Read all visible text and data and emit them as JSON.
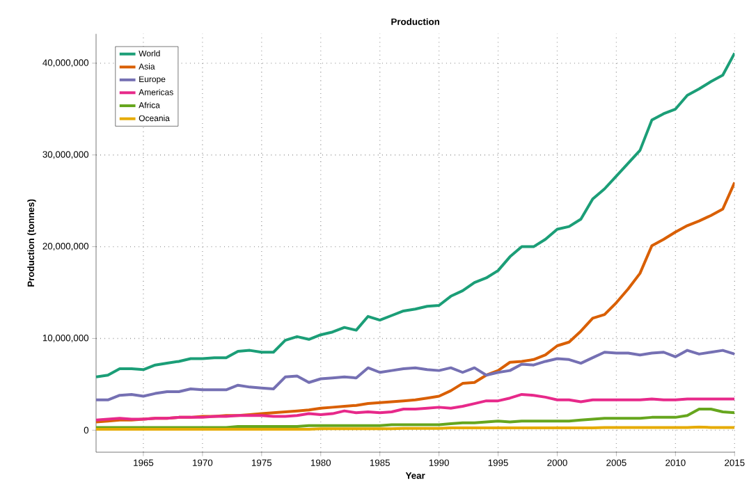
{
  "chart_data": {
    "type": "line",
    "title": "Production",
    "xlabel": "Year",
    "ylabel": "Production (tonnes)",
    "x": [
      1961,
      1962,
      1963,
      1964,
      1965,
      1966,
      1967,
      1968,
      1969,
      1970,
      1971,
      1972,
      1973,
      1974,
      1975,
      1976,
      1977,
      1978,
      1979,
      1980,
      1981,
      1982,
      1983,
      1984,
      1985,
      1986,
      1987,
      1988,
      1989,
      1990,
      1991,
      1992,
      1993,
      1994,
      1995,
      1996,
      1997,
      1998,
      1999,
      2000,
      2001,
      2002,
      2003,
      2004,
      2005,
      2006,
      2007,
      2008,
      2009,
      2010,
      2011,
      2012,
      2013,
      2014,
      2015
    ],
    "series": [
      {
        "name": "World",
        "color": "#1b9e77",
        "values": [
          5800000,
          6000000,
          6700000,
          6700000,
          6600000,
          7100000,
          7300000,
          7500000,
          7800000,
          7800000,
          7900000,
          7900000,
          8600000,
          8700000,
          8500000,
          8500000,
          9800000,
          10200000,
          9900000,
          10400000,
          10700000,
          11200000,
          10900000,
          12400000,
          12000000,
          12500000,
          13000000,
          13200000,
          13500000,
          13600000,
          14600000,
          15200000,
          16100000,
          16600000,
          17400000,
          18900000,
          20000000,
          20000000,
          20800000,
          21900000,
          22200000,
          23000000,
          25200000,
          26300000,
          27700000,
          29100000,
          30500000,
          33800000,
          34500000,
          35000000,
          36500000,
          37200000,
          38000000,
          38700000,
          41100000
        ]
      },
      {
        "name": "Asia",
        "color": "#d95f02",
        "values": [
          900000,
          1000000,
          1100000,
          1100000,
          1200000,
          1300000,
          1300000,
          1400000,
          1400000,
          1500000,
          1500000,
          1600000,
          1600000,
          1700000,
          1800000,
          1900000,
          2000000,
          2100000,
          2200000,
          2400000,
          2500000,
          2600000,
          2700000,
          2900000,
          3000000,
          3100000,
          3200000,
          3300000,
          3500000,
          3700000,
          4300000,
          5100000,
          5200000,
          6000000,
          6500000,
          7400000,
          7500000,
          7700000,
          8200000,
          9200000,
          9600000,
          10800000,
          12200000,
          12600000,
          13900000,
          15400000,
          17100000,
          20100000,
          20800000,
          21600000,
          22300000,
          22800000,
          23400000,
          24100000,
          27000000
        ]
      },
      {
        "name": "Europe",
        "color": "#7570b3",
        "values": [
          3300000,
          3300000,
          3800000,
          3900000,
          3700000,
          4000000,
          4200000,
          4200000,
          4500000,
          4400000,
          4400000,
          4400000,
          4900000,
          4700000,
          4600000,
          4500000,
          5800000,
          5900000,
          5200000,
          5600000,
          5700000,
          5800000,
          5700000,
          6800000,
          6300000,
          6500000,
          6700000,
          6800000,
          6600000,
          6500000,
          6800000,
          6300000,
          6800000,
          6000000,
          6300000,
          6500000,
          7200000,
          7100000,
          7500000,
          7800000,
          7700000,
          7300000,
          7900000,
          8500000,
          8400000,
          8400000,
          8200000,
          8400000,
          8500000,
          8000000,
          8700000,
          8300000,
          8500000,
          8700000,
          8300000
        ]
      },
      {
        "name": "Americas",
        "color": "#e7298a",
        "values": [
          1100000,
          1200000,
          1300000,
          1200000,
          1200000,
          1300000,
          1300000,
          1400000,
          1400000,
          1400000,
          1500000,
          1500000,
          1600000,
          1600000,
          1600000,
          1500000,
          1500000,
          1600000,
          1800000,
          1700000,
          1800000,
          2100000,
          1900000,
          2000000,
          1900000,
          2000000,
          2300000,
          2300000,
          2400000,
          2500000,
          2400000,
          2600000,
          2900000,
          3200000,
          3200000,
          3500000,
          3900000,
          3800000,
          3600000,
          3300000,
          3300000,
          3100000,
          3300000,
          3300000,
          3300000,
          3300000,
          3300000,
          3400000,
          3300000,
          3300000,
          3400000,
          3400000,
          3400000,
          3400000,
          3400000
        ]
      },
      {
        "name": "Africa",
        "color": "#66a61e",
        "values": [
          300000,
          300000,
          300000,
          300000,
          300000,
          300000,
          300000,
          300000,
          300000,
          300000,
          300000,
          300000,
          400000,
          400000,
          400000,
          400000,
          400000,
          400000,
          500000,
          500000,
          500000,
          500000,
          500000,
          500000,
          500000,
          600000,
          600000,
          600000,
          600000,
          600000,
          700000,
          800000,
          800000,
          900000,
          1000000,
          900000,
          1000000,
          1000000,
          1000000,
          1000000,
          1000000,
          1100000,
          1200000,
          1300000,
          1300000,
          1300000,
          1300000,
          1400000,
          1400000,
          1400000,
          1600000,
          2300000,
          2300000,
          2000000,
          1900000
        ]
      },
      {
        "name": "Oceania",
        "color": "#e6ab02",
        "values": [
          100000,
          100000,
          100000,
          100000,
          100000,
          100000,
          100000,
          100000,
          100000,
          100000,
          100000,
          100000,
          100000,
          100000,
          100000,
          100000,
          100000,
          100000,
          100000,
          150000,
          150000,
          150000,
          150000,
          150000,
          150000,
          150000,
          200000,
          200000,
          200000,
          200000,
          250000,
          250000,
          250000,
          250000,
          250000,
          250000,
          250000,
          250000,
          250000,
          250000,
          250000,
          250000,
          250000,
          300000,
          300000,
          300000,
          300000,
          300000,
          300000,
          300000,
          300000,
          350000,
          300000,
          300000,
          300000
        ]
      }
    ],
    "xlim": [
      1961,
      2015
    ],
    "ylim": [
      -2400000,
      43200000
    ],
    "xticks": [
      1965,
      1970,
      1975,
      1980,
      1985,
      1990,
      1995,
      2000,
      2005,
      2010,
      2015
    ],
    "yticks": [
      {
        "value": 0,
        "label": "0"
      },
      {
        "value": 10000000,
        "label": "10,000,000"
      },
      {
        "value": 20000000,
        "label": "20,000,000"
      },
      {
        "value": 30000000,
        "label": "30,000,000"
      },
      {
        "value": 40000000,
        "label": "40,000,000"
      }
    ],
    "grid": true,
    "legend": "top left"
  }
}
